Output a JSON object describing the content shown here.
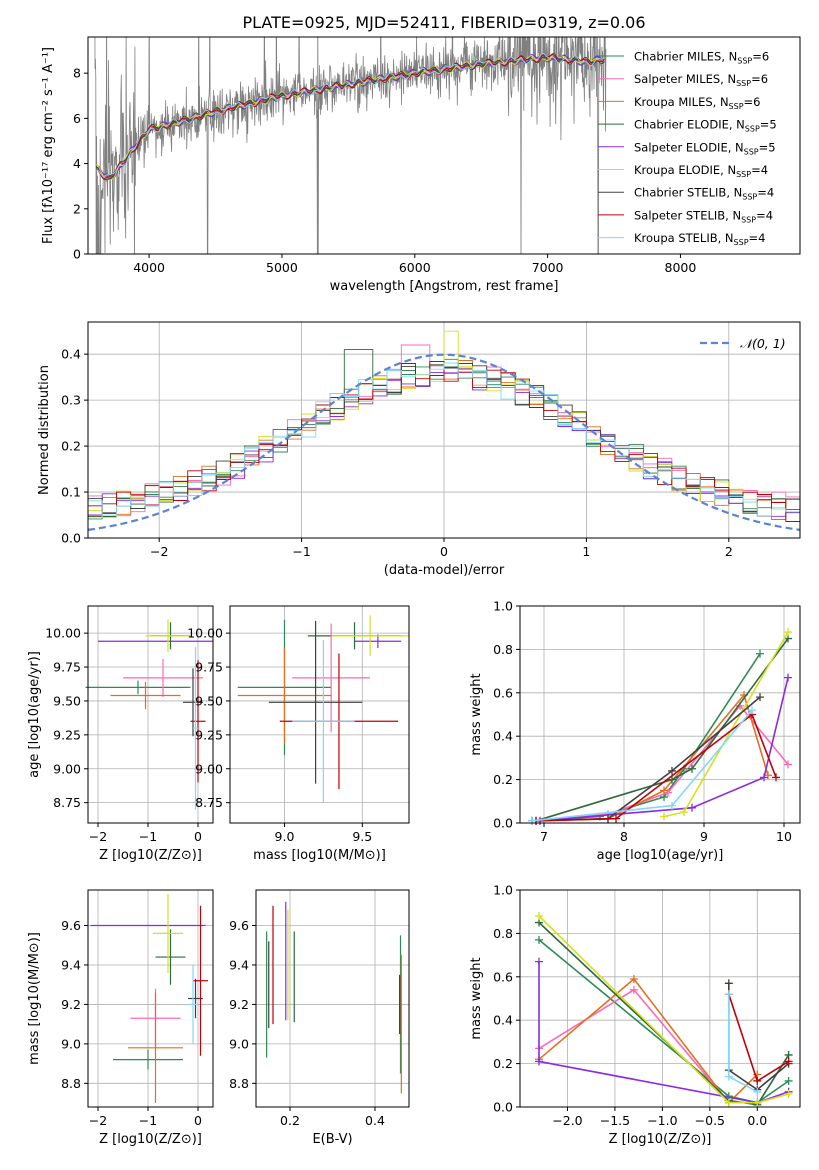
{
  "figure_title": "PLATE=0925, MJD=52411, FIBERID=0319, z=0.06",
  "colors": {
    "obs": "#808080",
    "models": [
      "#2e8b57",
      "#ff69b4",
      "#e07020",
      "#2e6b3a",
      "#8a2be2",
      "#d4e020",
      "#404040",
      "#c0000a",
      "#80d8ff"
    ]
  },
  "models": [
    {
      "label": "Chabrier MILES, N",
      "sub": "SSP",
      "tail": "=6"
    },
    {
      "label": "Salpeter MILES, N",
      "sub": "SSP",
      "tail": "=6"
    },
    {
      "label": "Kroupa MILES, N",
      "sub": "SSP",
      "tail": "=6"
    },
    {
      "label": "Chabrier ELODIE, N",
      "sub": "SSP",
      "tail": "=5"
    },
    {
      "label": "Salpeter ELODIE, N",
      "sub": "SSP",
      "tail": "=5"
    },
    {
      "label": "Kroupa ELODIE, N",
      "sub": "SSP",
      "tail": "=4"
    },
    {
      "label": "Chabrier STELIB, N",
      "sub": "SSP",
      "tail": "=4"
    },
    {
      "label": "Salpeter STELIB, N",
      "sub": "SSP",
      "tail": "=4"
    },
    {
      "label": "Kroupa STELIB, N",
      "sub": "SSP",
      "tail": "=4"
    }
  ],
  "chart_data": [
    {
      "id": "spectrum",
      "type": "line",
      "xlabel": "wavelength [Angstrom, rest frame]",
      "ylabel": "Flux [fλ10⁻¹⁷ erg cm⁻² s⁻¹ A⁻¹]",
      "xlim": [
        3540,
        8900
      ],
      "ylim": [
        0,
        9.6
      ],
      "xticks": [
        4000,
        5000,
        6000,
        7000,
        8000
      ],
      "yticks": [
        0,
        2,
        4,
        6,
        8
      ],
      "continuum_wavelength": [
        3600,
        3700,
        3800,
        3900,
        4000,
        4200,
        4500,
        5000,
        5500,
        6000,
        6500,
        7000,
        7300,
        7400
      ],
      "continuum_flux": [
        3.8,
        3.3,
        4.0,
        4.8,
        5.5,
        5.8,
        6.3,
        7.0,
        7.5,
        8.0,
        8.4,
        8.7,
        8.5,
        8.6
      ],
      "grid": false,
      "legend": "top-right"
    },
    {
      "id": "residuals",
      "type": "line",
      "xlabel": "(data-model)/error",
      "ylabel": "Normed distribution",
      "xlim": [
        -2.5,
        2.5
      ],
      "ylim": [
        0,
        0.47
      ],
      "xticks": [
        -2,
        -1,
        0,
        1,
        2
      ],
      "yticks": [
        0.0,
        0.1,
        0.2,
        0.3,
        0.4
      ],
      "gaussian_label": "𝒩(0, 1)",
      "gaussian_color": "#5b84d6",
      "grid": true,
      "legend": "top-right"
    },
    {
      "id": "age_vs_z",
      "type": "scatter",
      "xlabel": "Z [log10(Z/Z⊙)]",
      "ylabel": "age  [log10(age/yr)]",
      "xlim": [
        -2.2,
        0.3
      ],
      "ylim": [
        8.6,
        10.2
      ],
      "xticks": [
        -2,
        -1,
        0
      ],
      "yticks": [
        8.75,
        9.0,
        9.25,
        9.5,
        9.75,
        10.0
      ],
      "grid": true
    },
    {
      "id": "age_vs_mass",
      "type": "scatter",
      "xlabel": "mass [log10(M/M⊙)]",
      "xlim": [
        8.65,
        9.8
      ],
      "ylim": [
        8.6,
        10.2
      ],
      "xticks": [
        9.0,
        9.5
      ],
      "yticks": [
        8.75,
        9.0,
        9.25,
        9.5,
        9.75,
        10.0
      ],
      "grid": true
    },
    {
      "id": "weight_vs_age",
      "type": "line",
      "xlabel": "age  [log10(age/yr)]",
      "ylabel": "mass weight",
      "xlim": [
        6.7,
        10.2
      ],
      "ylim": [
        0,
        1
      ],
      "xticks": [
        7,
        8,
        9,
        10
      ],
      "yticks": [
        0.0,
        0.2,
        0.4,
        0.6,
        0.8,
        1.0
      ],
      "grid": true,
      "series": [
        {
          "x": [
            6.85,
            7.7,
            8.5,
            8.75,
            9.7
          ],
          "y": [
            0.01,
            0.03,
            0.12,
            0.25,
            0.78
          ]
        },
        {
          "x": [
            6.9,
            7.8,
            8.55,
            9.45,
            10.05
          ],
          "y": [
            0.01,
            0.04,
            0.14,
            0.54,
            0.27
          ]
        },
        {
          "x": [
            6.95,
            7.8,
            8.5,
            9.5,
            9.8
          ],
          "y": [
            0.01,
            0.02,
            0.15,
            0.59,
            0.22
          ]
        },
        {
          "x": [
            6.9,
            8.6,
            8.85,
            10.05
          ],
          "y": [
            0.01,
            0.2,
            0.25,
            0.85
          ]
        },
        {
          "x": [
            6.95,
            8.85,
            9.75,
            10.05
          ],
          "y": [
            0.01,
            0.07,
            0.21,
            0.67
          ]
        },
        {
          "x": [
            8.5,
            8.75,
            10.05
          ],
          "y": [
            0.03,
            0.05,
            0.88
          ]
        },
        {
          "x": [
            6.85,
            7.8,
            8.6,
            9.7
          ],
          "y": [
            0.01,
            0.02,
            0.24,
            0.58
          ]
        },
        {
          "x": [
            6.9,
            7.9,
            9.6,
            9.9
          ],
          "y": [
            0.01,
            0.02,
            0.5,
            0.21
          ]
        },
        {
          "x": [
            6.85,
            8.6,
            9.6
          ],
          "y": [
            0.01,
            0.08,
            0.52
          ]
        }
      ]
    },
    {
      "id": "mass_vs_z",
      "type": "scatter",
      "xlabel": "Z [log10(Z/Z⊙)]",
      "ylabel": "mass [log10(M/M⊙)]",
      "xlim": [
        -2.2,
        0.3
      ],
      "ylim": [
        8.68,
        9.78
      ],
      "xticks": [
        -2,
        -1,
        0
      ],
      "yticks": [
        8.8,
        9.0,
        9.2,
        9.4,
        9.6
      ],
      "grid": true
    },
    {
      "id": "mass_vs_ebv",
      "type": "scatter",
      "xlabel": "E(B-V)",
      "xlim": [
        0.12,
        0.48
      ],
      "ylim": [
        8.68,
        9.78
      ],
      "xticks": [
        0.2,
        0.4
      ],
      "yticks": [
        8.8,
        9.0,
        9.2,
        9.4,
        9.6
      ],
      "grid": true
    },
    {
      "id": "weight_vs_z",
      "type": "line",
      "xlabel": "Z [log10(Z/Z⊙)]",
      "ylabel": "mass weight",
      "xlim": [
        -2.5,
        0.45
      ],
      "ylim": [
        0,
        1
      ],
      "xticks": [
        -2.0,
        -1.5,
        -1.0,
        -0.5,
        0.0
      ],
      "yticks": [
        0.0,
        0.2,
        0.4,
        0.6,
        0.8,
        1.0
      ],
      "grid": true,
      "series": [
        {
          "x": [
            -2.3,
            -0.3,
            0.0,
            0.33
          ],
          "y": [
            0.77,
            0.05,
            0.02,
            0.12
          ]
        },
        {
          "x": [
            -2.3,
            -1.3,
            -0.3,
            0.0
          ],
          "y": [
            0.27,
            0.54,
            0.02,
            0.02
          ]
        },
        {
          "x": [
            -2.3,
            -1.3,
            -0.3,
            0.0
          ],
          "y": [
            0.22,
            0.59,
            0.02,
            0.15
          ]
        },
        {
          "x": [
            -2.3,
            -0.3,
            0.0,
            0.33
          ],
          "y": [
            0.85,
            0.03,
            0.01,
            0.24
          ]
        },
        {
          "x": [
            -2.3,
            -2.3,
            0.0,
            0.33
          ],
          "y": [
            0.67,
            0.21,
            0.02,
            0.07
          ]
        },
        {
          "x": [
            -2.3,
            -0.3,
            0.0,
            0.33
          ],
          "y": [
            0.88,
            0.02,
            0.02,
            0.06
          ]
        },
        {
          "x": [
            -0.3,
            -0.3,
            0.0,
            0.33
          ],
          "y": [
            0.57,
            0.17,
            0.08,
            0.2
          ]
        },
        {
          "x": [
            -0.3,
            0.0,
            0.33
          ],
          "y": [
            0.52,
            0.12,
            0.21
          ]
        },
        {
          "x": [
            -0.3,
            -0.3,
            0.0
          ],
          "y": [
            0.52,
            0.14,
            0.07
          ]
        }
      ]
    }
  ]
}
